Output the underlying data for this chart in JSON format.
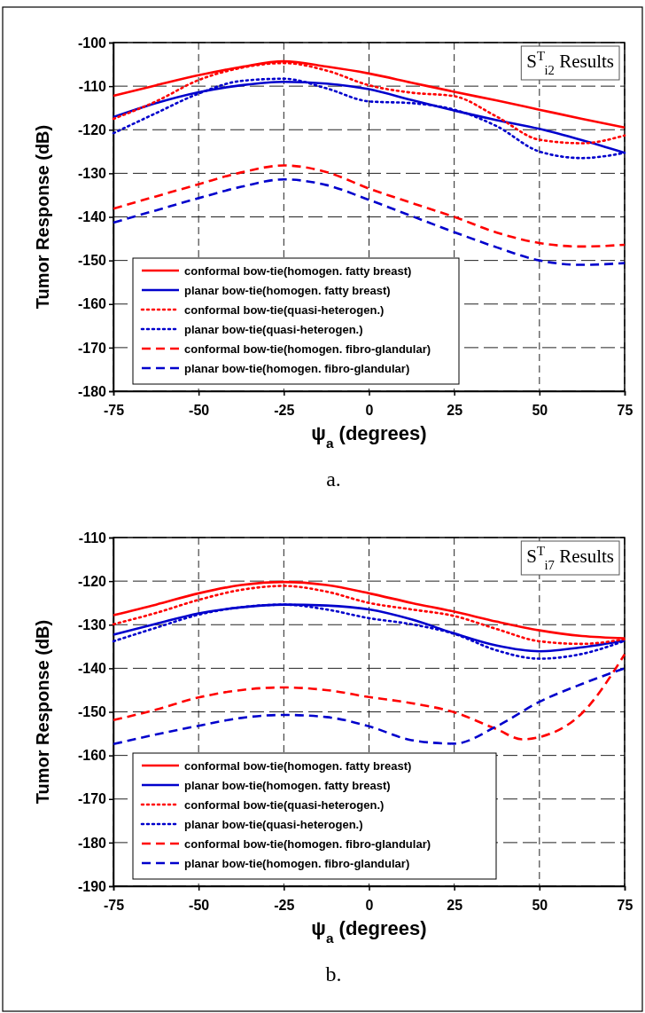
{
  "chart_data": [
    {
      "type": "line",
      "xlabel": "ψ$_{a}$ (degrees)",
      "ylabel": "Tumor Response (dB)",
      "x": [
        -75,
        -62.5,
        -50,
        -37.5,
        -25,
        -12.5,
        0,
        12.5,
        25,
        37.5,
        50,
        62.5,
        75
      ],
      "xlim": [
        -75,
        75
      ],
      "xticks": [
        -75,
        -50,
        -25,
        0,
        25,
        50,
        75
      ],
      "ylim": [
        -180,
        -100
      ],
      "yticks": [
        -180,
        -170,
        -160,
        -150,
        -140,
        -130,
        -120,
        -110,
        -100
      ],
      "grid": true,
      "legend": "bottom left",
      "marker": "none",
      "annotations": [
        "S$^{T}$$_{i2}$ Results",
        "a."
      ],
      "series": [
        {
          "name": "conformal bow-tie(homogen. fatty breast)",
          "color": "#ff0000",
          "line_style": "solid",
          "values": [
            -112.2,
            -109.8,
            -107.5,
            -105.6,
            -104.3,
            -105.5,
            -107.1,
            -109.2,
            -111.3,
            -113.3,
            -115.4,
            -117.5,
            -119.5
          ]
        },
        {
          "name": "planar bow-tie(homogen. fatty breast)",
          "color": "#0000cc",
          "line_style": "solid",
          "values": [
            -117.1,
            -113.9,
            -111.4,
            -109.8,
            -109.0,
            -109.4,
            -110.7,
            -113.2,
            -115.6,
            -117.8,
            -119.8,
            -122.4,
            -125.3
          ]
        },
        {
          "name": "conformal bow-tie(quasi-heterogen.)",
          "color": "#ff0000",
          "line_style": "dotted",
          "values": [
            -117.5,
            -113.5,
            -108.6,
            -105.8,
            -104.7,
            -106.4,
            -109.8,
            -111.5,
            -112.3,
            -117.0,
            -122.3,
            -123.1,
            -121.3
          ]
        },
        {
          "name": "planar bow-tie(quasi-heterogen.)",
          "color": "#0000cc",
          "line_style": "dotted",
          "values": [
            -120.8,
            -116.2,
            -111.7,
            -108.8,
            -108.3,
            -110.5,
            -113.5,
            -113.9,
            -115.4,
            -119.2,
            -125.0,
            -126.5,
            -125.3
          ]
        },
        {
          "name": "conformal bow-tie(homogen. fibro-glandular)",
          "color": "#ff0000",
          "line_style": "dashed",
          "values": [
            -138.1,
            -135.3,
            -132.5,
            -129.8,
            -128.2,
            -129.7,
            -133.5,
            -136.8,
            -140.0,
            -143.6,
            -146.0,
            -146.8,
            -146.4
          ]
        },
        {
          "name": "planar bow-tie(homogen. fibro-glandular)",
          "color": "#0000cc",
          "line_style": "dashed",
          "values": [
            -141.3,
            -138.5,
            -135.7,
            -133.1,
            -131.4,
            -132.7,
            -136.1,
            -139.8,
            -143.5,
            -147.0,
            -150.0,
            -151.0,
            -150.6
          ]
        }
      ]
    },
    {
      "type": "line",
      "xlabel": "ψ$_{a}$ (degrees)",
      "ylabel": "Tumor Response (dB)",
      "x": [
        -75,
        -62.5,
        -50,
        -37.5,
        -25,
        -12.5,
        0,
        12.5,
        25,
        37.5,
        50,
        62.5,
        75
      ],
      "xlim": [
        -75,
        75
      ],
      "xticks": [
        -75,
        -50,
        -25,
        0,
        25,
        50,
        75
      ],
      "ylim": [
        -190,
        -110
      ],
      "yticks": [
        -190,
        -180,
        -170,
        -160,
        -150,
        -140,
        -130,
        -120,
        -110
      ],
      "grid": true,
      "legend": "bottom left",
      "marker": "none",
      "annotations": [
        "S$^{T}$$_{i7}$ Results",
        "b."
      ],
      "series": [
        {
          "name": "conformal bow-tie(homogen. fatty breast)",
          "color": "#ff0000",
          "line_style": "solid",
          "values": [
            -127.8,
            -125.4,
            -122.8,
            -120.9,
            -120.2,
            -120.9,
            -122.8,
            -125.0,
            -127.0,
            -129.3,
            -131.3,
            -132.6,
            -133.1
          ]
        },
        {
          "name": "planar bow-tie(homogen. fatty breast)",
          "color": "#0000cc",
          "line_style": "solid",
          "values": [
            -132.3,
            -129.8,
            -127.4,
            -126.0,
            -125.4,
            -125.6,
            -126.5,
            -128.8,
            -132.0,
            -134.8,
            -136.1,
            -135.2,
            -133.6
          ]
        },
        {
          "name": "conformal bow-tie(quasi-heterogen.)",
          "color": "#ff0000",
          "line_style": "dotted",
          "values": [
            -129.9,
            -127.3,
            -124.3,
            -122.0,
            -121.1,
            -122.4,
            -125.0,
            -126.5,
            -128.0,
            -131.0,
            -133.8,
            -134.4,
            -133.3
          ]
        },
        {
          "name": "planar bow-tie(quasi-heterogen.)",
          "color": "#0000cc",
          "line_style": "dotted",
          "values": [
            -133.8,
            -130.7,
            -127.7,
            -126.0,
            -125.4,
            -126.5,
            -128.5,
            -129.9,
            -132.1,
            -135.9,
            -137.8,
            -136.7,
            -133.7
          ]
        },
        {
          "name": "conformal bow-tie(homogen. fibro-glandular)",
          "color": "#ff0000",
          "line_style": "dashed",
          "x": [
            -75,
            -62.5,
            -50,
            -37.5,
            -25,
            -12.5,
            0,
            12.5,
            25,
            37.5,
            45,
            50,
            62.5,
            75
          ],
          "values": [
            -151.9,
            -149.5,
            -146.7,
            -145.0,
            -144.4,
            -145.0,
            -146.6,
            -148.0,
            -150.1,
            -154.0,
            -156.3,
            -155.8,
            -150.3,
            -136.8
          ]
        },
        {
          "name": "planar bow-tie(homogen. fibro-glandular)",
          "color": "#0000cc",
          "line_style": "dashed",
          "values": [
            -157.4,
            -155.2,
            -153.2,
            -151.4,
            -150.7,
            -151.2,
            -153.3,
            -156.5,
            -157.3,
            -153.3,
            -147.7,
            -143.6,
            -140.0
          ]
        }
      ]
    }
  ]
}
